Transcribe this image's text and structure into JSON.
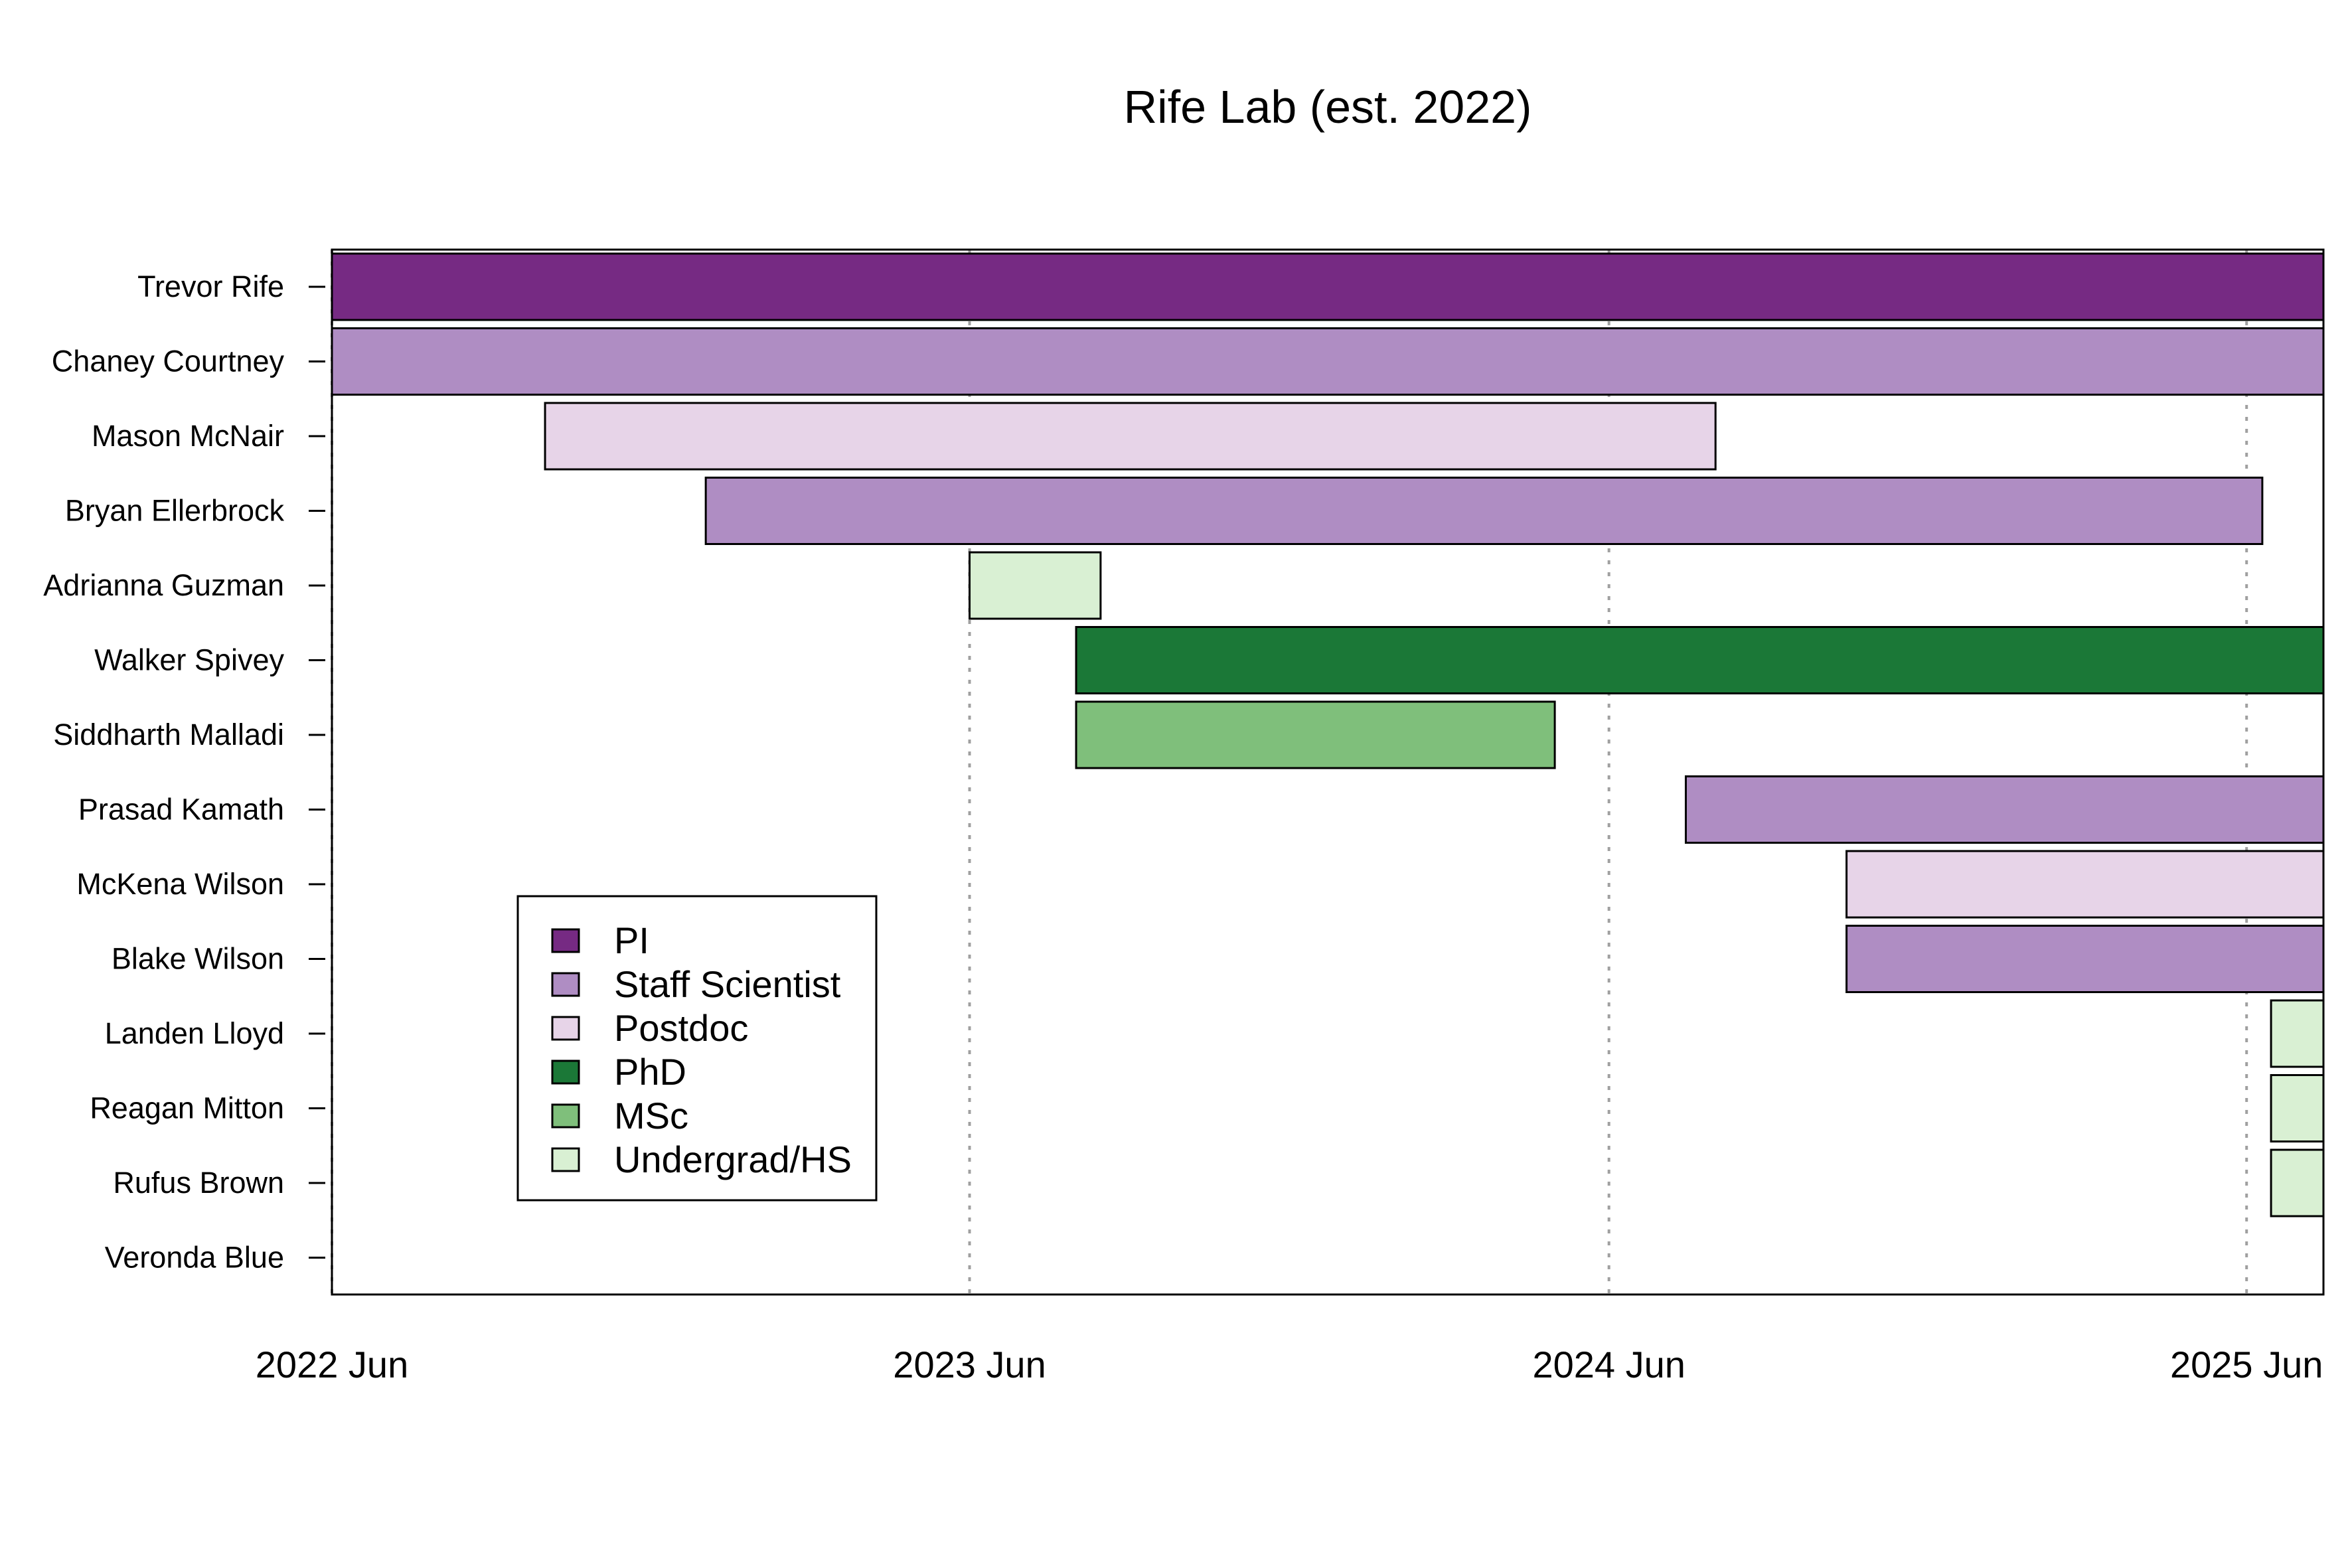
{
  "chart_data": {
    "type": "gantt",
    "title": "Rife Lab (est. 2022)",
    "x_axis": {
      "ticks": [
        "2022 Jun",
        "2023 Jun",
        "2024 Jun",
        "2025 Jun"
      ],
      "range": [
        "2022-06-01",
        "2025-07-15"
      ],
      "grid": "vertical dotted at ticks"
    },
    "people": [
      {
        "name": "Trevor Rife",
        "role": "PI",
        "start": "2022-06-01",
        "end": "2025-07-15"
      },
      {
        "name": "Chaney Courtney",
        "role": "Staff Scientist",
        "start": "2022-06-01",
        "end": "2025-07-15"
      },
      {
        "name": "Mason McNair",
        "role": "Postdoc",
        "start": "2022-10-01",
        "end": "2024-08-01"
      },
      {
        "name": "Bryan Ellerbrock",
        "role": "Staff Scientist",
        "start": "2023-01-01",
        "end": "2025-06-10"
      },
      {
        "name": "Adrianna Guzman",
        "role": "Undergrad/HS",
        "start": "2023-06-01",
        "end": "2023-08-15"
      },
      {
        "name": "Walker Spivey",
        "role": "PhD",
        "start": "2023-08-01",
        "end": "2025-07-15"
      },
      {
        "name": "Siddharth Malladi",
        "role": "MSc",
        "start": "2023-08-01",
        "end": "2024-05-01"
      },
      {
        "name": "Prasad Kamath",
        "role": "Staff Scientist",
        "start": "2024-07-15",
        "end": "2025-07-15"
      },
      {
        "name": "McKena Wilson",
        "role": "Postdoc",
        "start": "2024-10-15",
        "end": "2025-07-15"
      },
      {
        "name": "Blake Wilson",
        "role": "Staff Scientist",
        "start": "2024-10-15",
        "end": "2025-07-15"
      },
      {
        "name": "Landen Lloyd",
        "role": "Undergrad/HS",
        "start": "2025-06-15",
        "end": "2025-07-15"
      },
      {
        "name": "Reagan Mitton",
        "role": "Undergrad/HS",
        "start": "2025-06-15",
        "end": "2025-07-15"
      },
      {
        "name": "Rufus Brown",
        "role": "Undergrad/HS",
        "start": "2025-06-15",
        "end": "2025-07-15"
      },
      {
        "name": "Veronda Blue",
        "role": null,
        "start": null,
        "end": null
      }
    ],
    "legend": {
      "placement": "bottom-left",
      "items": [
        {
          "label": "PI",
          "color": "#762a83"
        },
        {
          "label": "Staff Scientist",
          "color": "#af8dc3"
        },
        {
          "label": "Postdoc",
          "color": "#e7d4e8"
        },
        {
          "label": "PhD",
          "color": "#1b7837"
        },
        {
          "label": "MSc",
          "color": "#7fbf7b"
        },
        {
          "label": "Undergrad/HS",
          "color": "#d9f0d3"
        }
      ]
    }
  }
}
